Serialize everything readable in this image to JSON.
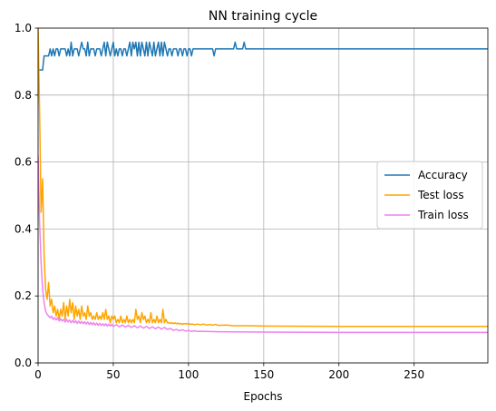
{
  "chart_data": {
    "type": "line",
    "title": "NN training cycle",
    "xlabel": "Epochs",
    "ylabel": "",
    "xlim": [
      0,
      299
    ],
    "ylim": [
      0,
      1.0
    ],
    "xticks": [
      0,
      50,
      100,
      150,
      200,
      250
    ],
    "yticks": [
      0.0,
      0.2,
      0.4,
      0.6,
      0.8,
      1.0
    ],
    "xtick_labels": [
      "0",
      "50",
      "100",
      "150",
      "200",
      "250"
    ],
    "ytick_labels": [
      "0.0",
      "0.2",
      "0.4",
      "0.6",
      "0.8",
      "1.0"
    ],
    "grid": true,
    "legend_position": "center-right",
    "series": [
      {
        "name": "Accuracy",
        "color": "#1f77b4",
        "points": [
          [
            0,
            0.875
          ],
          [
            1,
            0.875
          ],
          [
            2,
            0.875
          ],
          [
            3,
            0.875
          ],
          [
            4,
            0.917
          ],
          [
            5,
            0.917
          ],
          [
            6,
            0.917
          ],
          [
            7,
            0.917
          ],
          [
            8,
            0.938
          ],
          [
            9,
            0.917
          ],
          [
            10,
            0.938
          ],
          [
            11,
            0.917
          ],
          [
            12,
            0.938
          ],
          [
            13,
            0.938
          ],
          [
            14,
            0.917
          ],
          [
            15,
            0.938
          ],
          [
            16,
            0.938
          ],
          [
            17,
            0.938
          ],
          [
            18,
            0.938
          ],
          [
            19,
            0.917
          ],
          [
            20,
            0.938
          ],
          [
            21,
            0.917
          ],
          [
            22,
            0.958
          ],
          [
            23,
            0.917
          ],
          [
            24,
            0.938
          ],
          [
            25,
            0.938
          ],
          [
            26,
            0.938
          ],
          [
            27,
            0.917
          ],
          [
            28,
            0.938
          ],
          [
            29,
            0.958
          ],
          [
            30,
            0.938
          ],
          [
            31,
            0.938
          ],
          [
            32,
            0.917
          ],
          [
            33,
            0.958
          ],
          [
            34,
            0.917
          ],
          [
            35,
            0.938
          ],
          [
            36,
            0.938
          ],
          [
            37,
            0.938
          ],
          [
            38,
            0.917
          ],
          [
            39,
            0.938
          ],
          [
            40,
            0.938
          ],
          [
            41,
            0.938
          ],
          [
            42,
            0.917
          ],
          [
            43,
            0.938
          ],
          [
            44,
            0.958
          ],
          [
            45,
            0.917
          ],
          [
            46,
            0.958
          ],
          [
            47,
            0.938
          ],
          [
            48,
            0.917
          ],
          [
            49,
            0.938
          ],
          [
            50,
            0.958
          ],
          [
            51,
            0.917
          ],
          [
            52,
            0.938
          ],
          [
            53,
            0.917
          ],
          [
            54,
            0.938
          ],
          [
            55,
            0.938
          ],
          [
            56,
            0.917
          ],
          [
            57,
            0.938
          ],
          [
            58,
            0.938
          ],
          [
            59,
            0.917
          ],
          [
            60,
            0.938
          ],
          [
            61,
            0.958
          ],
          [
            62,
            0.917
          ],
          [
            63,
            0.958
          ],
          [
            64,
            0.938
          ],
          [
            65,
            0.958
          ],
          [
            66,
            0.917
          ],
          [
            67,
            0.958
          ],
          [
            68,
            0.917
          ],
          [
            69,
            0.958
          ],
          [
            70,
            0.938
          ],
          [
            71,
            0.917
          ],
          [
            72,
            0.958
          ],
          [
            73,
            0.917
          ],
          [
            74,
            0.958
          ],
          [
            75,
            0.938
          ],
          [
            76,
            0.917
          ],
          [
            77,
            0.958
          ],
          [
            78,
            0.917
          ],
          [
            79,
            0.938
          ],
          [
            80,
            0.958
          ],
          [
            81,
            0.917
          ],
          [
            82,
            0.958
          ],
          [
            83,
            0.917
          ],
          [
            84,
            0.958
          ],
          [
            85,
            0.938
          ],
          [
            86,
            0.917
          ],
          [
            87,
            0.938
          ],
          [
            88,
            0.938
          ],
          [
            89,
            0.917
          ],
          [
            90,
            0.938
          ],
          [
            91,
            0.938
          ],
          [
            92,
            0.938
          ],
          [
            93,
            0.917
          ],
          [
            94,
            0.938
          ],
          [
            95,
            0.938
          ],
          [
            96,
            0.917
          ],
          [
            97,
            0.938
          ],
          [
            98,
            0.938
          ],
          [
            99,
            0.917
          ],
          [
            100,
            0.938
          ],
          [
            101,
            0.938
          ],
          [
            102,
            0.917
          ],
          [
            103,
            0.938
          ],
          [
            116,
            0.938
          ],
          [
            117,
            0.917
          ],
          [
            118,
            0.938
          ],
          [
            130,
            0.938
          ],
          [
            131,
            0.958
          ],
          [
            132,
            0.938
          ],
          [
            136,
            0.938
          ],
          [
            137,
            0.958
          ],
          [
            138,
            0.938
          ],
          [
            299,
            0.938
          ]
        ]
      },
      {
        "name": "Test loss",
        "color": "#ffa500",
        "points": [
          [
            0,
            1.0
          ],
          [
            1,
            0.75
          ],
          [
            2,
            0.45
          ],
          [
            3,
            0.55
          ],
          [
            4,
            0.32
          ],
          [
            5,
            0.22
          ],
          [
            6,
            0.19
          ],
          [
            7,
            0.24
          ],
          [
            8,
            0.17
          ],
          [
            9,
            0.19
          ],
          [
            10,
            0.15
          ],
          [
            11,
            0.17
          ],
          [
            12,
            0.14
          ],
          [
            13,
            0.16
          ],
          [
            14,
            0.13
          ],
          [
            15,
            0.16
          ],
          [
            16,
            0.14
          ],
          [
            17,
            0.18
          ],
          [
            18,
            0.13
          ],
          [
            19,
            0.17
          ],
          [
            20,
            0.14
          ],
          [
            21,
            0.19
          ],
          [
            22,
            0.15
          ],
          [
            23,
            0.18
          ],
          [
            24,
            0.13
          ],
          [
            25,
            0.17
          ],
          [
            26,
            0.14
          ],
          [
            27,
            0.16
          ],
          [
            28,
            0.13
          ],
          [
            29,
            0.17
          ],
          [
            30,
            0.14
          ],
          [
            31,
            0.15
          ],
          [
            32,
            0.13
          ],
          [
            33,
            0.17
          ],
          [
            34,
            0.14
          ],
          [
            35,
            0.15
          ],
          [
            36,
            0.13
          ],
          [
            37,
            0.14
          ],
          [
            38,
            0.13
          ],
          [
            39,
            0.15
          ],
          [
            40,
            0.13
          ],
          [
            41,
            0.14
          ],
          [
            42,
            0.13
          ],
          [
            43,
            0.15
          ],
          [
            44,
            0.13
          ],
          [
            45,
            0.16
          ],
          [
            46,
            0.13
          ],
          [
            47,
            0.14
          ],
          [
            48,
            0.12
          ],
          [
            49,
            0.14
          ],
          [
            50,
            0.13
          ],
          [
            51,
            0.14
          ],
          [
            52,
            0.12
          ],
          [
            53,
            0.13
          ],
          [
            54,
            0.12
          ],
          [
            55,
            0.14
          ],
          [
            56,
            0.12
          ],
          [
            57,
            0.13
          ],
          [
            58,
            0.12
          ],
          [
            59,
            0.14
          ],
          [
            60,
            0.12
          ],
          [
            61,
            0.13
          ],
          [
            62,
            0.12
          ],
          [
            63,
            0.13
          ],
          [
            64,
            0.12
          ],
          [
            65,
            0.16
          ],
          [
            66,
            0.13
          ],
          [
            67,
            0.14
          ],
          [
            68,
            0.12
          ],
          [
            69,
            0.15
          ],
          [
            70,
            0.13
          ],
          [
            71,
            0.14
          ],
          [
            72,
            0.12
          ],
          [
            73,
            0.13
          ],
          [
            74,
            0.12
          ],
          [
            75,
            0.15
          ],
          [
            76,
            0.12
          ],
          [
            77,
            0.13
          ],
          [
            78,
            0.12
          ],
          [
            79,
            0.14
          ],
          [
            80,
            0.12
          ],
          [
            81,
            0.13
          ],
          [
            82,
            0.12
          ],
          [
            83,
            0.16
          ],
          [
            84,
            0.12
          ],
          [
            85,
            0.13
          ],
          [
            86,
            0.12
          ],
          [
            87,
            0.12
          ],
          [
            88,
            0.118
          ],
          [
            89,
            0.12
          ],
          [
            90,
            0.117
          ],
          [
            91,
            0.12
          ],
          [
            92,
            0.117
          ],
          [
            93,
            0.119
          ],
          [
            94,
            0.116
          ],
          [
            95,
            0.118
          ],
          [
            96,
            0.115
          ],
          [
            97,
            0.118
          ],
          [
            98,
            0.116
          ],
          [
            99,
            0.118
          ],
          [
            100,
            0.115
          ],
          [
            101,
            0.117
          ],
          [
            102,
            0.115
          ],
          [
            103,
            0.116
          ],
          [
            104,
            0.114
          ],
          [
            106,
            0.116
          ],
          [
            108,
            0.114
          ],
          [
            110,
            0.116
          ],
          [
            112,
            0.113
          ],
          [
            114,
            0.115
          ],
          [
            116,
            0.113
          ],
          [
            118,
            0.115
          ],
          [
            120,
            0.112
          ],
          [
            125,
            0.113
          ],
          [
            130,
            0.111
          ],
          [
            140,
            0.111
          ],
          [
            150,
            0.11
          ],
          [
            200,
            0.109
          ],
          [
            299,
            0.109
          ]
        ]
      },
      {
        "name": "Train loss",
        "color": "#ee82ee",
        "points": [
          [
            0,
            0.62
          ],
          [
            1,
            0.42
          ],
          [
            2,
            0.3
          ],
          [
            3,
            0.22
          ],
          [
            4,
            0.18
          ],
          [
            5,
            0.155
          ],
          [
            6,
            0.145
          ],
          [
            7,
            0.14
          ],
          [
            8,
            0.135
          ],
          [
            9,
            0.14
          ],
          [
            10,
            0.13
          ],
          [
            11,
            0.135
          ],
          [
            12,
            0.128
          ],
          [
            13,
            0.135
          ],
          [
            14,
            0.125
          ],
          [
            15,
            0.132
          ],
          [
            16,
            0.125
          ],
          [
            17,
            0.13
          ],
          [
            18,
            0.122
          ],
          [
            19,
            0.13
          ],
          [
            20,
            0.122
          ],
          [
            21,
            0.128
          ],
          [
            22,
            0.12
          ],
          [
            23,
            0.127
          ],
          [
            24,
            0.12
          ],
          [
            25,
            0.126
          ],
          [
            26,
            0.118
          ],
          [
            27,
            0.125
          ],
          [
            28,
            0.118
          ],
          [
            29,
            0.124
          ],
          [
            30,
            0.117
          ],
          [
            31,
            0.123
          ],
          [
            32,
            0.116
          ],
          [
            33,
            0.122
          ],
          [
            34,
            0.115
          ],
          [
            35,
            0.121
          ],
          [
            36,
            0.114
          ],
          [
            37,
            0.12
          ],
          [
            38,
            0.113
          ],
          [
            39,
            0.119
          ],
          [
            40,
            0.112
          ],
          [
            41,
            0.118
          ],
          [
            42,
            0.112
          ],
          [
            43,
            0.117
          ],
          [
            44,
            0.111
          ],
          [
            45,
            0.117
          ],
          [
            46,
            0.11
          ],
          [
            47,
            0.116
          ],
          [
            48,
            0.11
          ],
          [
            49,
            0.115
          ],
          [
            50,
            0.109
          ],
          [
            52,
            0.114
          ],
          [
            54,
            0.108
          ],
          [
            56,
            0.113
          ],
          [
            58,
            0.107
          ],
          [
            60,
            0.112
          ],
          [
            62,
            0.106
          ],
          [
            64,
            0.111
          ],
          [
            66,
            0.105
          ],
          [
            68,
            0.11
          ],
          [
            70,
            0.104
          ],
          [
            72,
            0.109
          ],
          [
            74,
            0.103
          ],
          [
            76,
            0.108
          ],
          [
            78,
            0.102
          ],
          [
            80,
            0.107
          ],
          [
            82,
            0.101
          ],
          [
            84,
            0.106
          ],
          [
            86,
            0.1
          ],
          [
            88,
            0.103
          ],
          [
            90,
            0.097
          ],
          [
            92,
            0.1
          ],
          [
            94,
            0.096
          ],
          [
            96,
            0.099
          ],
          [
            98,
            0.095
          ],
          [
            100,
            0.097
          ],
          [
            102,
            0.094
          ],
          [
            104,
            0.096
          ],
          [
            106,
            0.094
          ],
          [
            110,
            0.094
          ],
          [
            120,
            0.093
          ],
          [
            150,
            0.092
          ],
          [
            200,
            0.091
          ],
          [
            299,
            0.091
          ]
        ]
      }
    ]
  }
}
